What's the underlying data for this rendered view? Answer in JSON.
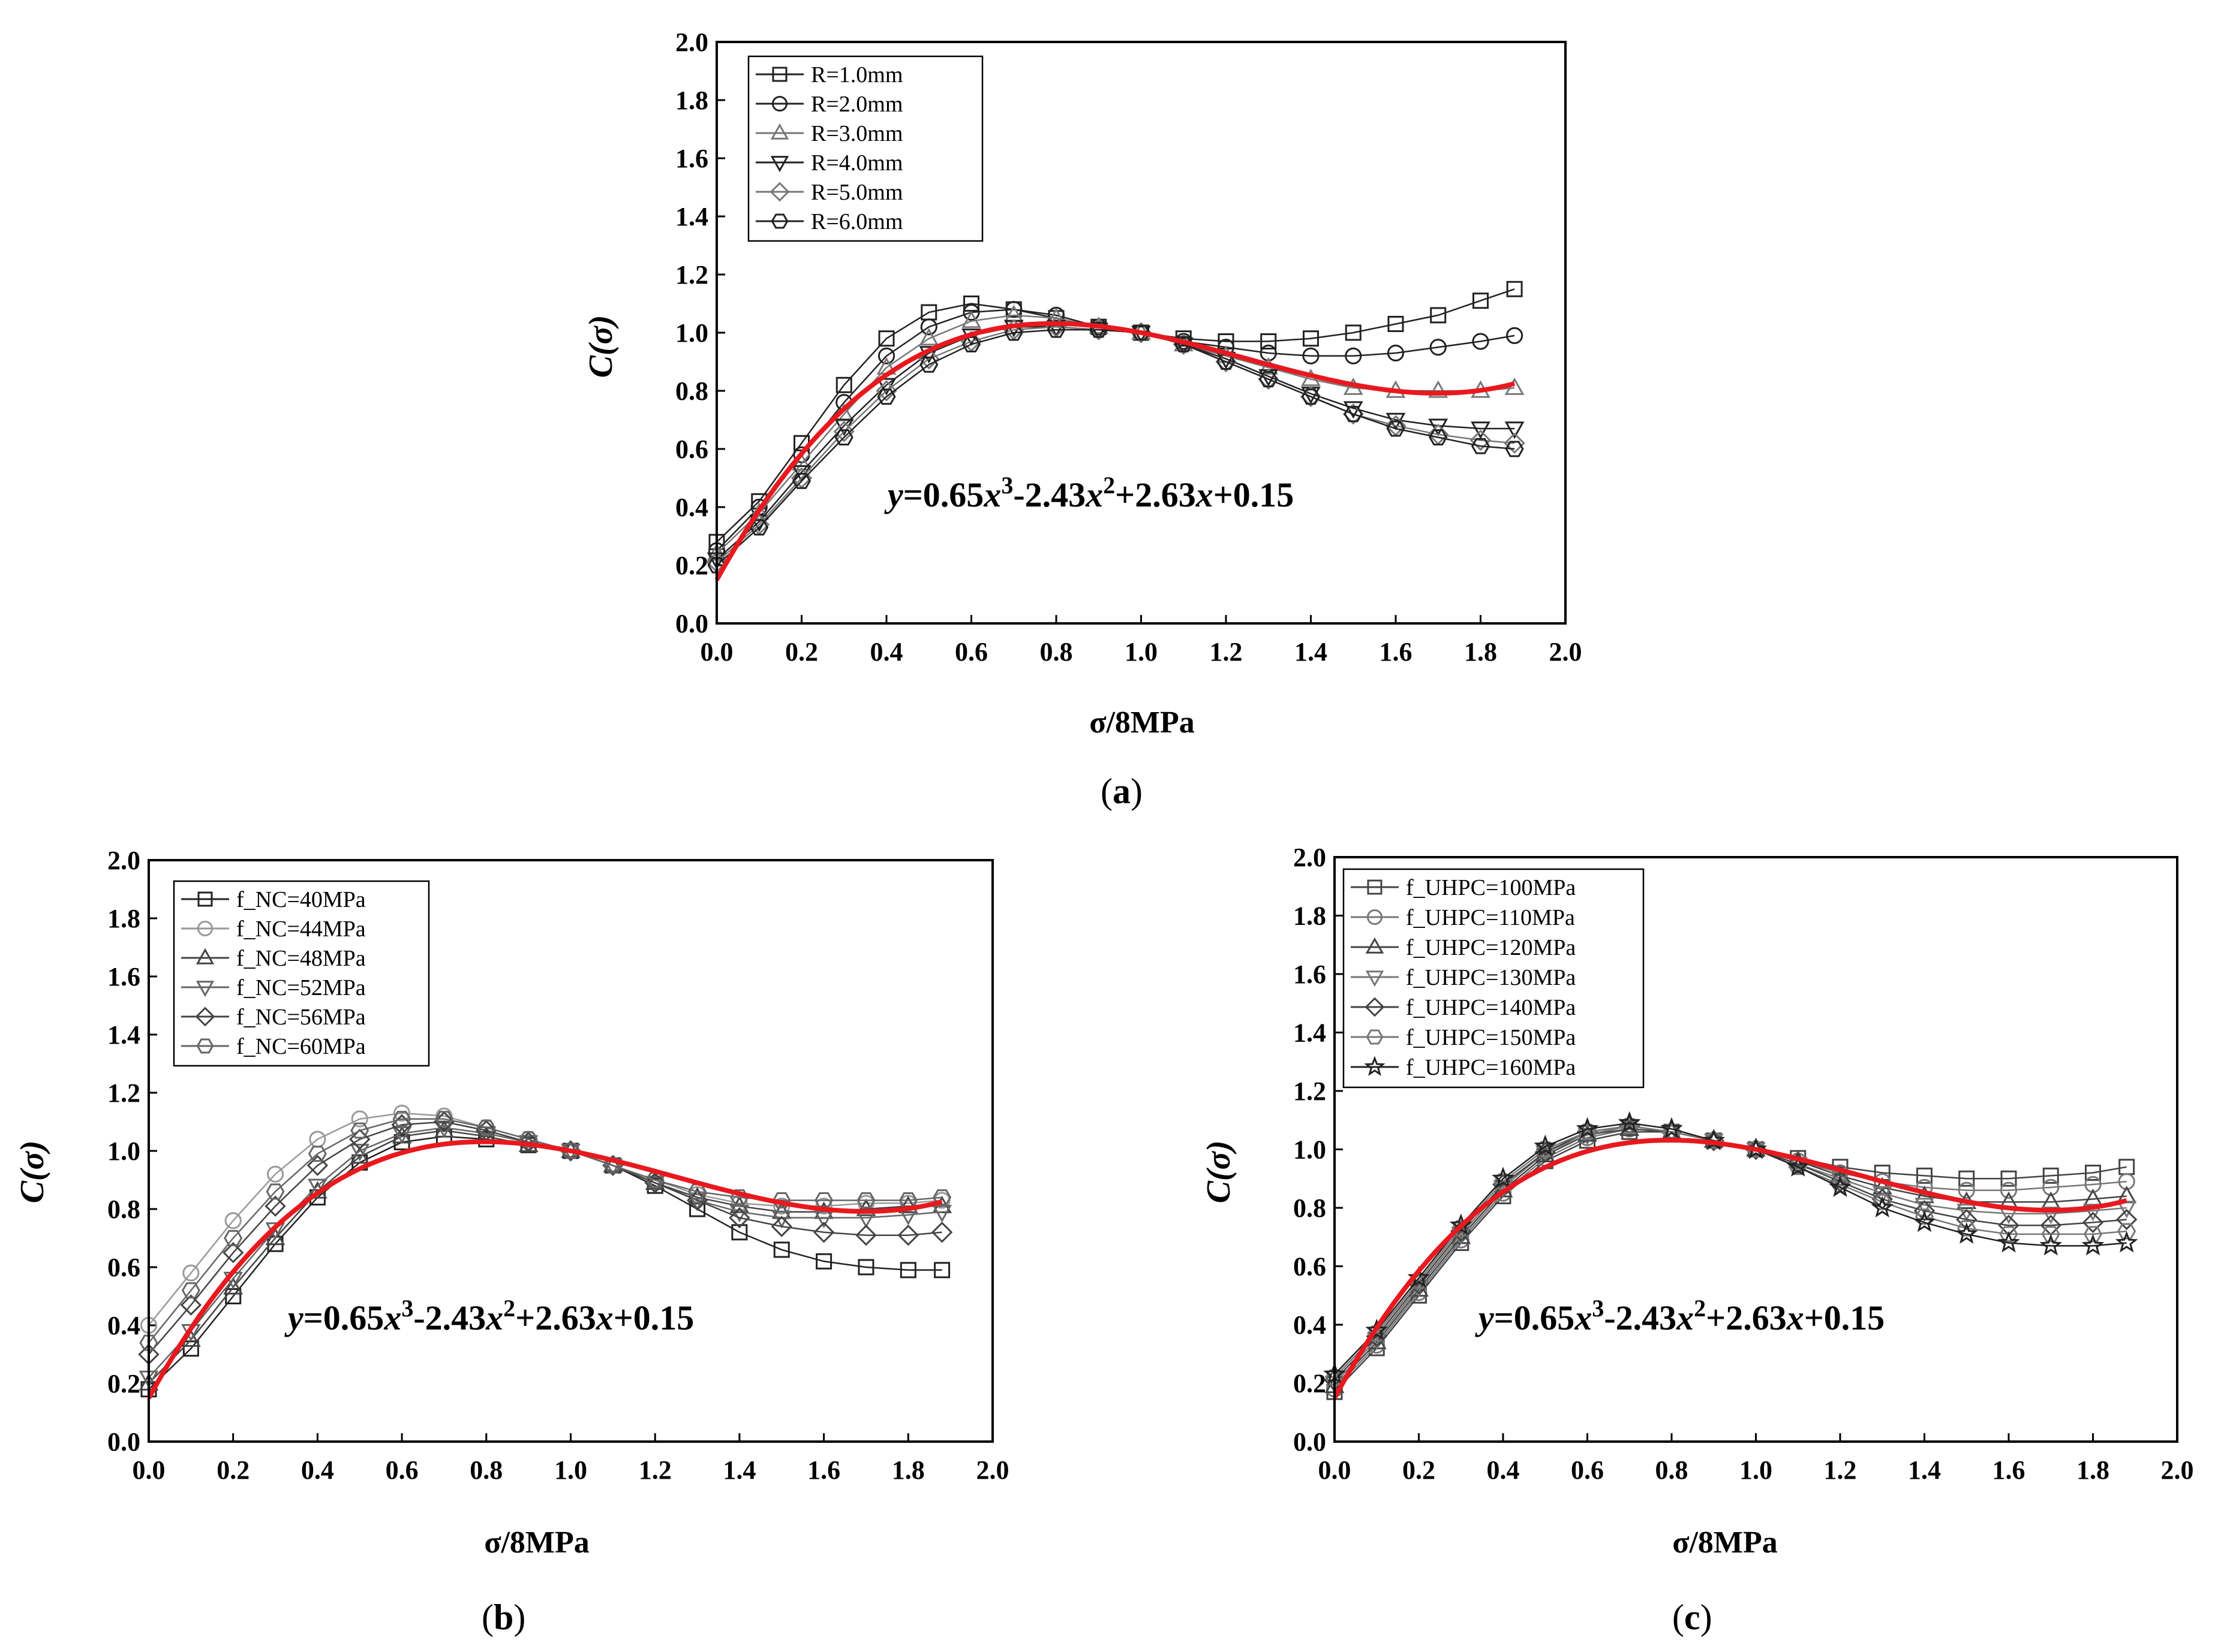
{
  "panels": [
    {
      "caption_letter": "a",
      "equation": {
        "lead": "y",
        "t1": "=0.65",
        "x1": "x",
        "e1": "3",
        "t2": "-2.43",
        "x2": "x",
        "e2": "2",
        "t3": "+2.63",
        "x3": "x",
        "t4": "+0.15"
      },
      "xlabel": "σ/8MPa",
      "ylabel": "C(σ)"
    },
    {
      "caption_letter": "b",
      "equation": {
        "lead": "y",
        "t1": "=0.65",
        "x1": "x",
        "e1": "3",
        "t2": "-2.43",
        "x2": "x",
        "e2": "2",
        "t3": "+2.63",
        "x3": "x",
        "t4": "+0.15"
      },
      "xlabel": "σ/8MPa",
      "ylabel": "C(σ)"
    },
    {
      "caption_letter": "c",
      "equation": {
        "lead": "y",
        "t1": "=0.65",
        "x1": "x",
        "e1": "3",
        "t2": "-2.43",
        "x2": "x",
        "e2": "2",
        "t3": "+2.63",
        "x3": "x",
        "t4": "+0.15"
      },
      "xlabel": "σ/8MPa",
      "ylabel": "C(σ)"
    }
  ],
  "chart_data": [
    {
      "type": "line",
      "xlabel": "σ/8MPa",
      "ylabel": "C(σ)",
      "xlim": [
        0,
        2.0
      ],
      "ylim": [
        0,
        2.0
      ],
      "xticks": [
        "0.0",
        "0.2",
        "0.4",
        "0.6",
        "0.8",
        "1.0",
        "1.2",
        "1.4",
        "1.6",
        "1.8",
        "2.0"
      ],
      "yticks": [
        "0.0",
        "0.2",
        "0.4",
        "0.6",
        "0.8",
        "1.0",
        "1.2",
        "1.4",
        "1.6",
        "1.8",
        "2.0"
      ],
      "legend_position": "top-left",
      "fit": {
        "a3": 0.65,
        "a2": -2.43,
        "a1": 2.63,
        "a0": 0.15,
        "x_range": [
          0,
          1.88
        ],
        "color": "#e8191e"
      },
      "x": [
        0.0,
        0.1,
        0.2,
        0.3,
        0.4,
        0.5,
        0.6,
        0.7,
        0.8,
        0.9,
        1.0,
        1.1,
        1.2,
        1.3,
        1.4,
        1.5,
        1.6,
        1.7,
        1.8,
        1.88
      ],
      "series": [
        {
          "name": "R=1.0mm",
          "marker": "square",
          "color": "#222222",
          "values": [
            0.28,
            0.42,
            0.62,
            0.82,
            0.98,
            1.07,
            1.1,
            1.08,
            1.05,
            1.02,
            1.0,
            0.98,
            0.97,
            0.97,
            0.98,
            1.0,
            1.03,
            1.06,
            1.11,
            1.15
          ]
        },
        {
          "name": "R=2.0mm",
          "marker": "circle",
          "color": "#222222",
          "values": [
            0.25,
            0.4,
            0.58,
            0.76,
            0.92,
            1.02,
            1.07,
            1.08,
            1.06,
            1.02,
            1.0,
            0.97,
            0.95,
            0.93,
            0.92,
            0.92,
            0.93,
            0.95,
            0.97,
            0.99
          ]
        },
        {
          "name": "R=3.0mm",
          "marker": "triangle-up",
          "color": "#777777",
          "values": [
            0.24,
            0.38,
            0.55,
            0.72,
            0.88,
            0.98,
            1.04,
            1.06,
            1.05,
            1.02,
            1.0,
            0.96,
            0.92,
            0.88,
            0.84,
            0.81,
            0.8,
            0.8,
            0.8,
            0.81
          ]
        },
        {
          "name": "R=4.0mm",
          "marker": "triangle-down",
          "color": "#222222",
          "values": [
            0.22,
            0.35,
            0.52,
            0.68,
            0.82,
            0.93,
            0.99,
            1.02,
            1.02,
            1.01,
            1.0,
            0.96,
            0.91,
            0.85,
            0.79,
            0.74,
            0.7,
            0.68,
            0.67,
            0.67
          ]
        },
        {
          "name": "R=5.0mm",
          "marker": "diamond",
          "color": "#777777",
          "values": [
            0.21,
            0.34,
            0.5,
            0.66,
            0.8,
            0.91,
            0.97,
            1.01,
            1.02,
            1.01,
            1.0,
            0.96,
            0.9,
            0.84,
            0.78,
            0.72,
            0.68,
            0.65,
            0.63,
            0.62
          ]
        },
        {
          "name": "R=6.0mm",
          "marker": "hexagon",
          "color": "#222222",
          "values": [
            0.2,
            0.33,
            0.49,
            0.64,
            0.78,
            0.89,
            0.96,
            1.0,
            1.01,
            1.01,
            1.0,
            0.96,
            0.9,
            0.84,
            0.78,
            0.72,
            0.67,
            0.64,
            0.61,
            0.6
          ]
        }
      ]
    },
    {
      "type": "line",
      "xlabel": "σ/8MPa",
      "ylabel": "C(σ)",
      "xlim": [
        0,
        2.0
      ],
      "ylim": [
        0,
        2.0
      ],
      "xticks": [
        "0.0",
        "0.2",
        "0.4",
        "0.6",
        "0.8",
        "1.0",
        "1.2",
        "1.4",
        "1.6",
        "1.8",
        "2.0"
      ],
      "yticks": [
        "0.0",
        "0.2",
        "0.4",
        "0.6",
        "0.8",
        "1.0",
        "1.2",
        "1.4",
        "1.6",
        "1.8",
        "2.0"
      ],
      "legend_position": "top-left",
      "fit": {
        "a3": 0.65,
        "a2": -2.43,
        "a1": 2.63,
        "a0": 0.15,
        "x_range": [
          0,
          1.88
        ],
        "color": "#e8191e"
      },
      "x": [
        0.0,
        0.1,
        0.2,
        0.3,
        0.4,
        0.5,
        0.6,
        0.7,
        0.8,
        0.9,
        1.0,
        1.1,
        1.2,
        1.3,
        1.4,
        1.5,
        1.6,
        1.7,
        1.8,
        1.88
      ],
      "series": [
        {
          "name": "f_NC=40MPa",
          "marker": "square",
          "color": "#222222",
          "values": [
            0.18,
            0.32,
            0.5,
            0.68,
            0.84,
            0.96,
            1.03,
            1.05,
            1.04,
            1.02,
            1.0,
            0.95,
            0.88,
            0.8,
            0.72,
            0.66,
            0.62,
            0.6,
            0.59,
            0.59
          ]
        },
        {
          "name": "f_NC=44MPa",
          "marker": "circle",
          "color": "#999999",
          "values": [
            0.4,
            0.58,
            0.76,
            0.92,
            1.04,
            1.11,
            1.13,
            1.12,
            1.08,
            1.04,
            1.0,
            0.95,
            0.9,
            0.85,
            0.82,
            0.81,
            0.81,
            0.82,
            0.82,
            0.83
          ]
        },
        {
          "name": "f_NC=48MPa",
          "marker": "triangle-up",
          "color": "#444444",
          "values": [
            0.2,
            0.35,
            0.53,
            0.7,
            0.86,
            0.98,
            1.05,
            1.07,
            1.05,
            1.02,
            1.0,
            0.95,
            0.89,
            0.84,
            0.81,
            0.79,
            0.79,
            0.8,
            0.81,
            0.81
          ]
        },
        {
          "name": "f_NC=52MPa",
          "marker": "triangle-down",
          "color": "#666666",
          "values": [
            0.22,
            0.38,
            0.56,
            0.73,
            0.88,
            1.0,
            1.06,
            1.08,
            1.06,
            1.03,
            1.0,
            0.95,
            0.89,
            0.83,
            0.79,
            0.77,
            0.77,
            0.77,
            0.78,
            0.79
          ]
        },
        {
          "name": "f_NC=56MPa",
          "marker": "diamond",
          "color": "#444444",
          "values": [
            0.3,
            0.47,
            0.65,
            0.81,
            0.95,
            1.04,
            1.09,
            1.1,
            1.07,
            1.03,
            1.0,
            0.95,
            0.89,
            0.83,
            0.77,
            0.74,
            0.72,
            0.71,
            0.71,
            0.72
          ]
        },
        {
          "name": "f_NC=60MPa",
          "marker": "hexagon",
          "color": "#666666",
          "values": [
            0.34,
            0.52,
            0.7,
            0.86,
            0.99,
            1.07,
            1.11,
            1.11,
            1.08,
            1.04,
            1.0,
            0.95,
            0.9,
            0.86,
            0.84,
            0.83,
            0.83,
            0.83,
            0.83,
            0.84
          ]
        }
      ]
    },
    {
      "type": "line",
      "xlabel": "σ/8MPa",
      "ylabel": "C(σ)",
      "xlim": [
        0,
        2.0
      ],
      "ylim": [
        0,
        2.0
      ],
      "xticks": [
        "0.0",
        "0.2",
        "0.4",
        "0.6",
        "0.8",
        "1.0",
        "1.2",
        "1.4",
        "1.6",
        "1.8",
        "2.0"
      ],
      "yticks": [
        "0.0",
        "0.2",
        "0.4",
        "0.6",
        "0.8",
        "1.0",
        "1.2",
        "1.4",
        "1.6",
        "1.8",
        "2.0"
      ],
      "legend_position": "top-left",
      "fit": {
        "a3": 0.65,
        "a2": -2.43,
        "a1": 2.63,
        "a0": 0.15,
        "x_range": [
          0,
          1.88
        ],
        "color": "#e8191e"
      },
      "x": [
        0.0,
        0.1,
        0.2,
        0.3,
        0.4,
        0.5,
        0.6,
        0.7,
        0.8,
        0.9,
        1.0,
        1.1,
        1.2,
        1.3,
        1.4,
        1.5,
        1.6,
        1.7,
        1.8,
        1.88
      ],
      "series": [
        {
          "name": "f_UHPC=100MPa",
          "marker": "square",
          "color": "#444444",
          "values": [
            0.17,
            0.32,
            0.5,
            0.68,
            0.84,
            0.96,
            1.03,
            1.06,
            1.06,
            1.03,
            1.0,
            0.97,
            0.94,
            0.92,
            0.91,
            0.9,
            0.9,
            0.91,
            0.92,
            0.94
          ]
        },
        {
          "name": "f_UHPC=110MPa",
          "marker": "circle",
          "color": "#777777",
          "values": [
            0.18,
            0.33,
            0.51,
            0.69,
            0.85,
            0.97,
            1.04,
            1.07,
            1.06,
            1.03,
            1.0,
            0.96,
            0.92,
            0.89,
            0.87,
            0.86,
            0.86,
            0.87,
            0.88,
            0.89
          ]
        },
        {
          "name": "f_UHPC=120MPa",
          "marker": "triangle-up",
          "color": "#444444",
          "values": [
            0.19,
            0.34,
            0.52,
            0.7,
            0.86,
            0.98,
            1.05,
            1.07,
            1.06,
            1.03,
            1.0,
            0.96,
            0.91,
            0.87,
            0.84,
            0.82,
            0.82,
            0.82,
            0.83,
            0.84
          ]
        },
        {
          "name": "f_UHPC=130MPa",
          "marker": "triangle-down",
          "color": "#777777",
          "values": [
            0.2,
            0.35,
            0.53,
            0.71,
            0.87,
            0.99,
            1.05,
            1.08,
            1.06,
            1.03,
            1.0,
            0.95,
            0.9,
            0.85,
            0.81,
            0.79,
            0.78,
            0.78,
            0.79,
            0.8
          ]
        },
        {
          "name": "f_UHPC=140MPa",
          "marker": "diamond",
          "color": "#444444",
          "values": [
            0.21,
            0.36,
            0.54,
            0.72,
            0.88,
            0.99,
            1.06,
            1.08,
            1.06,
            1.03,
            1.0,
            0.95,
            0.89,
            0.83,
            0.79,
            0.76,
            0.74,
            0.74,
            0.75,
            0.76
          ]
        },
        {
          "name": "f_UHPC=150MPa",
          "marker": "hexagon",
          "color": "#777777",
          "values": [
            0.22,
            0.37,
            0.55,
            0.73,
            0.89,
            1.0,
            1.06,
            1.08,
            1.06,
            1.03,
            1.0,
            0.94,
            0.88,
            0.82,
            0.77,
            0.73,
            0.71,
            0.71,
            0.71,
            0.72
          ]
        },
        {
          "name": "f_UHPC=160MPa",
          "marker": "star",
          "color": "#222222",
          "values": [
            0.23,
            0.38,
            0.56,
            0.74,
            0.9,
            1.01,
            1.07,
            1.09,
            1.07,
            1.03,
            1.0,
            0.94,
            0.87,
            0.8,
            0.75,
            0.71,
            0.68,
            0.67,
            0.67,
            0.68
          ]
        }
      ]
    }
  ]
}
